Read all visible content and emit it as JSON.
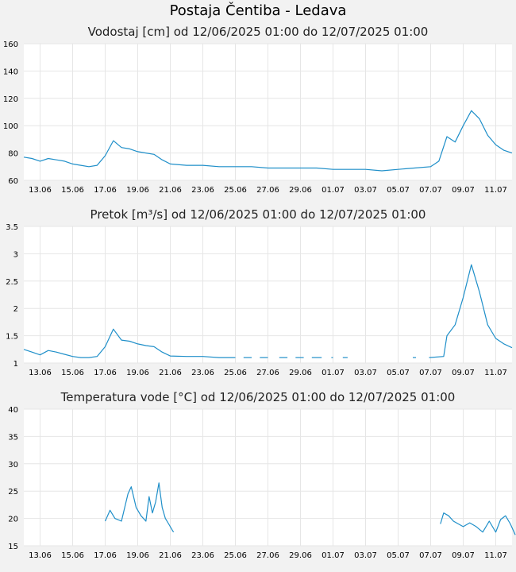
{
  "page_title": "Postaja Čentiba - Ledava",
  "series_color": "#1f8fc9",
  "x_tick_labels": [
    "13.06",
    "15.06",
    "17.06",
    "19.06",
    "21.06",
    "23.06",
    "25.06",
    "27.06",
    "29.06",
    "01.07",
    "03.07",
    "05.07",
    "07.07",
    "09.07",
    "11.07"
  ],
  "chart_data": [
    {
      "type": "line",
      "title": "Vodostaj [cm] od 12/06/2025 01:00 do 12/07/2025 01:00",
      "ylim": [
        60,
        160
      ],
      "yticks": [
        "60",
        "80",
        "100",
        "120",
        "140",
        "160"
      ],
      "x_unit": "day",
      "x": [
        0,
        0.5,
        1,
        1.5,
        2,
        2.5,
        3,
        3.5,
        4,
        4.5,
        5,
        5.5,
        6,
        6.5,
        7,
        7.5,
        8,
        8.5,
        9,
        10,
        11,
        12,
        13,
        14,
        15,
        16,
        17,
        18,
        19,
        20,
        21,
        22,
        23,
        24,
        25,
        25.5,
        26,
        26.5,
        27,
        27.5,
        28,
        28.5,
        29,
        29.5,
        30
      ],
      "series": [
        {
          "values": [
            77,
            76,
            74,
            76,
            75,
            74,
            72,
            71,
            70,
            71,
            78,
            89,
            84,
            83,
            81,
            80,
            79,
            75,
            72,
            71,
            71,
            70,
            70,
            70,
            69,
            69,
            69,
            69,
            68,
            68,
            68,
            67,
            68,
            69,
            70,
            74,
            92,
            88,
            100,
            111,
            105,
            93,
            86,
            82,
            80
          ]
        }
      ]
    },
    {
      "type": "line",
      "title": "Pretok [m³/s] od 12/06/2025 01:00 do 12/07/2025 01:00",
      "ylim": [
        1,
        3.5
      ],
      "yticks": [
        "1",
        "1.5",
        "2",
        "2.5",
        "3",
        "3.5"
      ],
      "x_unit": "day",
      "segments": [
        {
          "x": [
            0,
            0.5,
            1,
            1.5,
            2,
            2.5,
            3,
            3.5,
            4,
            4.5,
            5,
            5.5,
            6,
            6.5,
            7,
            7.5,
            8,
            8.5,
            9,
            10,
            11,
            12,
            13
          ],
          "values": [
            1.25,
            1.2,
            1.15,
            1.23,
            1.2,
            1.16,
            1.12,
            1.1,
            1.1,
            1.12,
            1.3,
            1.62,
            1.42,
            1.4,
            1.35,
            1.32,
            1.3,
            1.2,
            1.13,
            1.12,
            1.12,
            1.1,
            1.1
          ]
        },
        {
          "x": [
            13.5,
            14
          ],
          "values": [
            1.1,
            1.1
          ]
        },
        {
          "x": [
            14.5,
            15
          ],
          "values": [
            1.1,
            1.1
          ]
        },
        {
          "x": [
            15.7,
            16.2
          ],
          "values": [
            1.1,
            1.1
          ]
        },
        {
          "x": [
            16.7,
            17.2
          ],
          "values": [
            1.1,
            1.1
          ]
        },
        {
          "x": [
            17.7,
            18.3
          ],
          "values": [
            1.1,
            1.1
          ]
        },
        {
          "x": [
            18.9,
            19
          ],
          "values": [
            1.1,
            1.1
          ]
        },
        {
          "x": [
            19.6,
            19.9
          ],
          "values": [
            1.1,
            1.1
          ]
        },
        {
          "x": [
            23.9,
            24.1
          ],
          "values": [
            1.1,
            1.1
          ]
        },
        {
          "x": [
            24.9,
            25.8,
            26,
            26.5,
            27,
            27.5,
            28,
            28.5,
            29,
            29.5,
            30
          ],
          "values": [
            1.1,
            1.12,
            1.5,
            1.7,
            2.2,
            2.8,
            2.3,
            1.7,
            1.45,
            1.35,
            1.28
          ]
        }
      ]
    },
    {
      "type": "line",
      "title": "Temperatura vode [°C] od 12/06/2025 01:00 do 12/07/2025 01:00",
      "ylim": [
        15,
        40
      ],
      "yticks": [
        "15",
        "20",
        "25",
        "30",
        "35",
        "40"
      ],
      "x_unit": "day",
      "segments": [
        {
          "x": [
            5.0,
            5.3,
            5.6,
            6.0,
            6.4,
            6.6,
            6.9,
            7.2,
            7.5,
            7.7,
            7.9,
            8.1,
            8.3,
            8.5,
            8.7,
            8.9,
            9.1,
            9.2
          ],
          "values": [
            19.5,
            21.5,
            20.0,
            19.5,
            24.5,
            25.8,
            22.0,
            20.5,
            19.5,
            24.0,
            21.0,
            23.0,
            26.5,
            22.0,
            20.0,
            19.0,
            18.0,
            17.5
          ]
        },
        {
          "x": [
            25.6,
            25.8,
            26.1,
            26.4,
            26.7,
            27.0,
            27.4,
            27.8,
            28.2,
            28.6,
            29.0,
            29.3,
            29.6,
            29.9,
            30.2
          ],
          "values": [
            19.0,
            21.0,
            20.5,
            19.5,
            19.0,
            18.5,
            19.2,
            18.5,
            17.5,
            19.5,
            17.5,
            19.8,
            20.5,
            19.0,
            17.0
          ]
        }
      ]
    }
  ]
}
